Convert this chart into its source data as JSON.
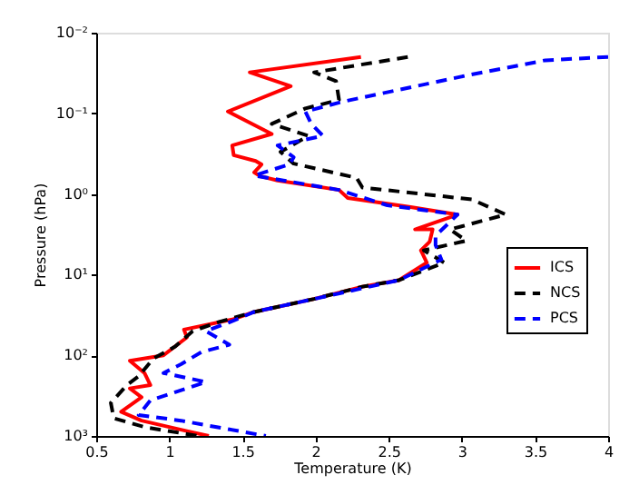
{
  "chart_data": {
    "type": "line",
    "xlabel": "Temperature (K)",
    "ylabel": "Pressure (hPa)",
    "log": "y",
    "xlim": [
      0.5,
      4
    ],
    "xticks": [
      0.5,
      1,
      1.5,
      2,
      2.5,
      3,
      3.5,
      4
    ],
    "ylim": [
      1000,
      0.01
    ],
    "yticks": [
      {
        "value": 0.01,
        "label": "10⁻²"
      },
      {
        "value": 0.1,
        "label": "10⁻¹"
      },
      {
        "value": 1,
        "label": "10⁰"
      },
      {
        "value": 10,
        "label": "10¹"
      },
      {
        "value": 100,
        "label": "10²"
      },
      {
        "value": 1000,
        "label": "10³"
      }
    ],
    "grid": false,
    "legend": "right",
    "marker": "none",
    "series": [
      {
        "name": "ICS",
        "color": "#ff0000",
        "line_style": "solid",
        "x": [
          2.31,
          1.55,
          1.83,
          1.4,
          1.7,
          1.43,
          1.44,
          1.59,
          1.63,
          1.58,
          1.62,
          1.74,
          2.16,
          2.22,
          2.65,
          2.97,
          2.68,
          2.8,
          2.78,
          2.72,
          2.76,
          2.57,
          2.32,
          1.99,
          1.58,
          1.43,
          1.1,
          1.12,
          0.96,
          0.73,
          0.83,
          0.87,
          0.73,
          0.81,
          0.67,
          0.81,
          1.12,
          1.27
        ],
        "values": [
          0.02,
          0.031,
          0.046,
          0.095,
          0.18,
          0.25,
          0.33,
          0.39,
          0.43,
          0.54,
          0.6,
          0.68,
          0.89,
          1.12,
          1.45,
          1.8,
          2.75,
          2.75,
          3.9,
          5.0,
          7.1,
          11.7,
          14.1,
          20,
          29,
          36,
          48,
          60,
          100,
          117,
          166,
          234,
          257,
          331,
          501,
          646,
          871,
          1000
        ]
      },
      {
        "name": "NCS",
        "color": "#000000",
        "line_style": "dashed",
        "x": [
          2.63,
          1.99,
          2.14,
          2.16,
          1.93,
          1.7,
          1.95,
          1.76,
          1.85,
          2.28,
          2.32,
          3.07,
          3.3,
          2.92,
          3.03,
          2.74,
          2.88,
          2.57,
          2.32,
          1.99,
          1.58,
          1.33,
          1.16,
          1.04,
          0.89,
          0.79,
          0.71,
          0.6,
          0.62,
          0.83,
          1.2
        ],
        "values": [
          0.02,
          0.031,
          0.04,
          0.068,
          0.087,
          0.135,
          0.19,
          0.3,
          0.42,
          0.63,
          0.83,
          1.17,
          1.8,
          2.75,
          3.8,
          5.0,
          7.1,
          11.7,
          14.1,
          20,
          29,
          39,
          50,
          78,
          110,
          182,
          234,
          389,
          603,
          776,
          1000
        ]
      },
      {
        "name": "PCS",
        "color": "#0000ff",
        "line_style": "dashed",
        "x": [
          4.0,
          3.57,
          3.03,
          2.18,
          1.93,
          1.97,
          2.05,
          1.74,
          1.85,
          1.82,
          1.58,
          1.78,
          2.16,
          2.49,
          2.97,
          2.82,
          2.82,
          2.86,
          2.57,
          1.99,
          1.58,
          1.41,
          1.25,
          1.41,
          1.22,
          1.08,
          0.96,
          1.25,
          0.87,
          0.79,
          1.08,
          1.66
        ],
        "values": [
          0.02,
          0.022,
          0.034,
          0.072,
          0.095,
          0.135,
          0.19,
          0.25,
          0.35,
          0.43,
          0.59,
          0.68,
          0.89,
          1.38,
          1.8,
          3.3,
          4.3,
          6.5,
          11.7,
          20,
          29,
          39,
          50,
          74,
          91,
          129,
          166,
          214,
          363,
          550,
          646,
          1000
        ]
      }
    ]
  }
}
